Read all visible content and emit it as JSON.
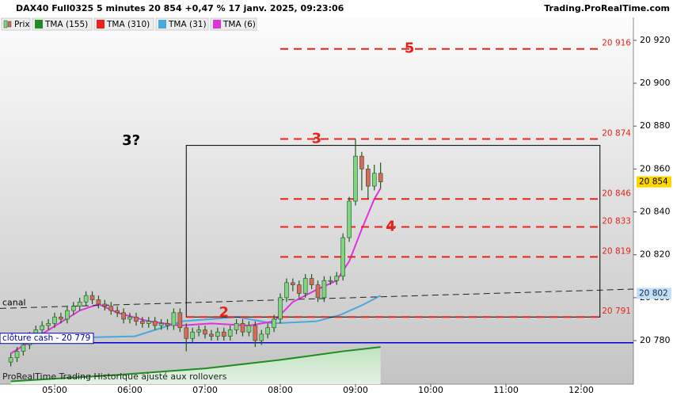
{
  "chart_data": {
    "type": "candlestick",
    "title": "DAX40 Full0325 5 minutes 20 854 +0,47 % 17 janv. 2025, 09:23:06",
    "source": "Trading.ProRealTime.com",
    "footer": "ProRealTime Trading Historique ajusté aux rollovers",
    "xlim": [
      256.4,
      761.7
    ],
    "ylim": [
      20759.7,
      20938.8
    ],
    "xticks": [
      {
        "value": 300,
        "label": "05:00"
      },
      {
        "value": 360,
        "label": "06:00"
      },
      {
        "value": 420,
        "label": "07:00"
      },
      {
        "value": 480,
        "label": "08:00"
      },
      {
        "value": 540,
        "label": "09:00"
      },
      {
        "value": 600,
        "label": "10:00"
      },
      {
        "value": 660,
        "label": "11:00"
      },
      {
        "value": 720,
        "label": "12:00"
      }
    ],
    "yticks": [
      {
        "value": 20780,
        "label": "20 780"
      },
      {
        "value": 20800,
        "label": "20 800"
      },
      {
        "value": 20820,
        "label": "20 820"
      },
      {
        "value": 20840,
        "label": "20 840"
      },
      {
        "value": 20860,
        "label": "20 860"
      },
      {
        "value": 20880,
        "label": "20 880"
      },
      {
        "value": 20900,
        "label": "20 900"
      },
      {
        "value": 20920,
        "label": "20 920"
      }
    ],
    "price": {
      "name": "Prix",
      "up_color": "#7ed67e",
      "down_color": "#d96a5a",
      "x": [
        265,
        270,
        275,
        280,
        285,
        290,
        295,
        300,
        305,
        310,
        315,
        320,
        325,
        330,
        335,
        340,
        345,
        350,
        355,
        360,
        365,
        370,
        375,
        380,
        385,
        390,
        395,
        400,
        405,
        410,
        415,
        420,
        425,
        430,
        435,
        440,
        445,
        450,
        455,
        460,
        465,
        470,
        475,
        480,
        485,
        490,
        495,
        500,
        505,
        510,
        515,
        520,
        525,
        530,
        535,
        540,
        545,
        550,
        555,
        560
      ],
      "candles": [
        [
          20770,
          20774,
          20768,
          20772
        ],
        [
          20772,
          20777,
          20770,
          20775
        ],
        [
          20775,
          20780,
          20773,
          20778
        ],
        [
          20778,
          20784,
          20776,
          20782
        ],
        [
          20782,
          20787,
          20780,
          20785
        ],
        [
          20785,
          20789,
          20783,
          20787
        ],
        [
          20787,
          20790,
          20785,
          20788
        ],
        [
          20788,
          20793,
          20786,
          20791
        ],
        [
          20791,
          20793,
          20788,
          20790
        ],
        [
          20790,
          20796,
          20788,
          20794
        ],
        [
          20794,
          20798,
          20792,
          20796
        ],
        [
          20796,
          20800,
          20794,
          20798
        ],
        [
          20798,
          20803,
          20796,
          20801
        ],
        [
          20801,
          20803,
          20797,
          20799
        ],
        [
          20799,
          20801,
          20795,
          20797
        ],
        [
          20797,
          20799,
          20794,
          20796
        ],
        [
          20796,
          20798,
          20792,
          20794
        ],
        [
          20794,
          20796,
          20791,
          20793
        ],
        [
          20793,
          20795,
          20788,
          20790
        ],
        [
          20790,
          20793,
          20788,
          20791
        ],
        [
          20791,
          20793,
          20787,
          20789
        ],
        [
          20789,
          20791,
          20786,
          20788
        ],
        [
          20788,
          20791,
          20786,
          20789
        ],
        [
          20789,
          20791,
          20785,
          20787
        ],
        [
          20787,
          20790,
          20785,
          20788
        ],
        [
          20788,
          20790,
          20785,
          20787
        ],
        [
          20787,
          20795,
          20785,
          20793
        ],
        [
          20793,
          20795,
          20784,
          20786
        ],
        [
          20786,
          20788,
          20775,
          20781
        ],
        [
          20781,
          20786,
          20779,
          20784
        ],
        [
          20784,
          20787,
          20782,
          20785
        ],
        [
          20785,
          20787,
          20781,
          20783
        ],
        [
          20783,
          20785,
          20780,
          20782
        ],
        [
          20782,
          20786,
          20780,
          20784
        ],
        [
          20784,
          20786,
          20780,
          20782
        ],
        [
          20782,
          20787,
          20780,
          20785
        ],
        [
          20785,
          20790,
          20783,
          20788
        ],
        [
          20788,
          20790,
          20782,
          20784
        ],
        [
          20784,
          20789,
          20782,
          20787
        ],
        [
          20787,
          20789,
          20777,
          20780
        ],
        [
          20780,
          20785,
          20778,
          20783
        ],
        [
          20783,
          20788,
          20781,
          20786
        ],
        [
          20786,
          20792,
          20784,
          20790
        ],
        [
          20790,
          20802,
          20788,
          20800
        ],
        [
          20800,
          20809,
          20798,
          20807
        ],
        [
          20807,
          20809,
          20803,
          20806
        ],
        [
          20806,
          20808,
          20800,
          20802
        ],
        [
          20802,
          20811,
          20800,
          20809
        ],
        [
          20809,
          20811,
          20804,
          20806
        ],
        [
          20806,
          20808,
          20798,
          20800
        ],
        [
          20800,
          20810,
          20798,
          20808
        ],
        [
          20808,
          20810,
          20806,
          20808
        ],
        [
          20808,
          20812,
          20806,
          20810
        ],
        [
          20810,
          20830,
          20808,
          20828
        ],
        [
          20828,
          20847,
          20826,
          20845
        ],
        [
          20845,
          20874,
          20843,
          20866
        ],
        [
          20866,
          20868,
          20850,
          20860
        ],
        [
          20860,
          20862,
          20846,
          20852
        ],
        [
          20852,
          20862,
          20850,
          20858
        ],
        [
          20858,
          20863,
          20851,
          20854
        ]
      ],
      "last": {
        "value": 20854,
        "label": "20 854"
      }
    },
    "series": [
      {
        "name": "TMA (155)",
        "color": "#1e8c1e",
        "fill": true,
        "x": [
          265,
          350,
          420,
          480,
          530,
          560
        ],
        "values": [
          20761,
          20764,
          20767,
          20771,
          20775,
          20777
        ]
      },
      {
        "name": "TMA (310)",
        "color": "#e8231b",
        "x": [],
        "values": []
      },
      {
        "name": "TMA (31)",
        "color": "#4aa8e0",
        "x": [
          290,
          364,
          402,
          446,
          474,
          509,
          528,
          547,
          560
        ],
        "values": [
          20781,
          20782,
          20789,
          20791,
          20788,
          20789,
          20792,
          20797,
          20801
        ],
        "last": {
          "value": 20802,
          "label": "20 802"
        }
      },
      {
        "name": "TMA (6)",
        "color": "#dd33dd",
        "x": [
          265,
          320,
          335,
          350,
          375,
          400,
          425,
          455,
          475,
          490,
          510,
          525,
          535,
          545,
          555,
          560
        ],
        "values": [
          20774,
          20794,
          20797,
          20793,
          20789,
          20787,
          20788,
          20787,
          20789,
          20798,
          20804,
          20808,
          20817,
          20832,
          20846,
          20851
        ]
      }
    ],
    "levels": [
      {
        "value": 20916,
        "label": "20 916",
        "x0": 480
      },
      {
        "value": 20874,
        "label": "20 874",
        "x0": 480
      },
      {
        "value": 20846,
        "label": "20 846",
        "x0": 480
      },
      {
        "value": 20833,
        "label": "20 833",
        "x0": 480
      },
      {
        "value": 20819,
        "label": "20 819",
        "x0": 480
      },
      {
        "value": 20791,
        "label": "20 791",
        "x0": 405
      }
    ],
    "level_color": "#e8231b",
    "annotations": [
      {
        "text": "5",
        "x": 583,
        "y": 20916,
        "color": "#e8231b"
      },
      {
        "text": "3",
        "x": 509,
        "y": 20874,
        "color": "#e8231b"
      },
      {
        "text": "4",
        "x": 568,
        "y": 20833,
        "color": "#e8231b"
      },
      {
        "text": "2",
        "x": 435,
        "y": 20793,
        "color": "#e8231b"
      },
      {
        "text": "3?",
        "x": 361,
        "y": 20873,
        "color": "#000000"
      }
    ],
    "box": {
      "x": [
        405,
        735
      ],
      "y": [
        20791,
        20871
      ]
    },
    "canal": {
      "label": "canal",
      "x": [
        256.4,
        761.7
      ],
      "y": [
        20795,
        20804
      ]
    },
    "cash_line": {
      "label": "clôture cash - 20 779",
      "value": 20779,
      "color": "#0000cc"
    }
  }
}
